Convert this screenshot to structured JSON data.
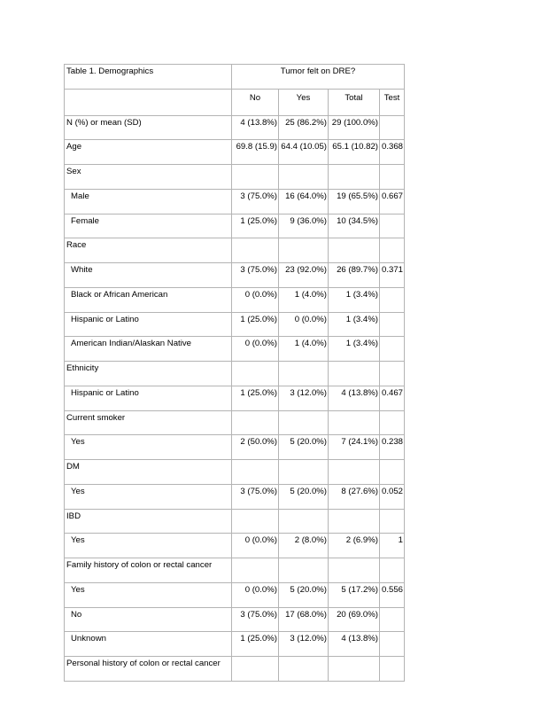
{
  "table": {
    "title": "Table 1. Demographics",
    "group_header": "Tumor felt on DRE?",
    "columns": [
      "No",
      "Yes",
      "Total",
      "Test"
    ],
    "rows": [
      {
        "label": "N (%) or mean (SD)",
        "indent": false,
        "cells": [
          "4 (13.8%)",
          "25 (86.2%)",
          "29 (100.0%)",
          ""
        ]
      },
      {
        "label": "Age",
        "indent": false,
        "cells": [
          "69.8 (15.9)",
          "64.4 (10.05)",
          "65.1 (10.82)",
          "0.368"
        ]
      },
      {
        "label": "Sex",
        "indent": false,
        "cells": [
          "",
          "",
          "",
          ""
        ]
      },
      {
        "label": "Male",
        "indent": true,
        "cells": [
          "3 (75.0%)",
          "16 (64.0%)",
          "19 (65.5%)",
          "0.667"
        ]
      },
      {
        "label": "Female",
        "indent": true,
        "cells": [
          "1 (25.0%)",
          "9 (36.0%)",
          "10 (34.5%)",
          ""
        ]
      },
      {
        "label": "Race",
        "indent": false,
        "cells": [
          "",
          "",
          "",
          ""
        ]
      },
      {
        "label": "White",
        "indent": true,
        "cells": [
          "3 (75.0%)",
          "23 (92.0%)",
          "26 (89.7%)",
          "0.371"
        ]
      },
      {
        "label": "Black or African American",
        "indent": true,
        "cells": [
          "0 (0.0%)",
          "1 (4.0%)",
          "1 (3.4%)",
          ""
        ]
      },
      {
        "label": "Hispanic or Latino",
        "indent": true,
        "cells": [
          "1 (25.0%)",
          "0 (0.0%)",
          "1 (3.4%)",
          ""
        ]
      },
      {
        "label": "American Indian/Alaskan Native",
        "indent": true,
        "cells": [
          "0 (0.0%)",
          "1 (4.0%)",
          "1 (3.4%)",
          ""
        ]
      },
      {
        "label": "Ethnicity",
        "indent": false,
        "cells": [
          "",
          "",
          "",
          ""
        ]
      },
      {
        "label": "Hispanic or Latino",
        "indent": true,
        "cells": [
          "1 (25.0%)",
          "3 (12.0%)",
          "4 (13.8%)",
          "0.467"
        ]
      },
      {
        "label": "Current smoker",
        "indent": false,
        "cells": [
          "",
          "",
          "",
          ""
        ]
      },
      {
        "label": "Yes",
        "indent": true,
        "cells": [
          "2 (50.0%)",
          "5 (20.0%)",
          "7 (24.1%)",
          "0.238"
        ]
      },
      {
        "label": "DM",
        "indent": false,
        "cells": [
          "",
          "",
          "",
          ""
        ]
      },
      {
        "label": "Yes",
        "indent": true,
        "cells": [
          "3 (75.0%)",
          "5 (20.0%)",
          "8 (27.6%)",
          "0.052"
        ]
      },
      {
        "label": "IBD",
        "indent": false,
        "cells": [
          "",
          "",
          "",
          ""
        ]
      },
      {
        "label": "Yes",
        "indent": true,
        "cells": [
          "0 (0.0%)",
          "2 (8.0%)",
          "2 (6.9%)",
          "1"
        ]
      },
      {
        "label": "Family history of colon or rectal cancer",
        "indent": false,
        "cells": [
          "",
          "",
          "",
          ""
        ]
      },
      {
        "label": "Yes",
        "indent": true,
        "cells": [
          "0 (0.0%)",
          "5 (20.0%)",
          "5 (17.2%)",
          "0.556"
        ]
      },
      {
        "label": "No",
        "indent": true,
        "cells": [
          "3 (75.0%)",
          "17 (68.0%)",
          "20 (69.0%)",
          ""
        ]
      },
      {
        "label": "Unknown",
        "indent": true,
        "cells": [
          "1 (25.0%)",
          "3 (12.0%)",
          "4 (13.8%)",
          ""
        ]
      },
      {
        "label": "Personal history of colon or rectal cancer",
        "indent": false,
        "cells": [
          "",
          "",
          "",
          ""
        ]
      }
    ]
  }
}
